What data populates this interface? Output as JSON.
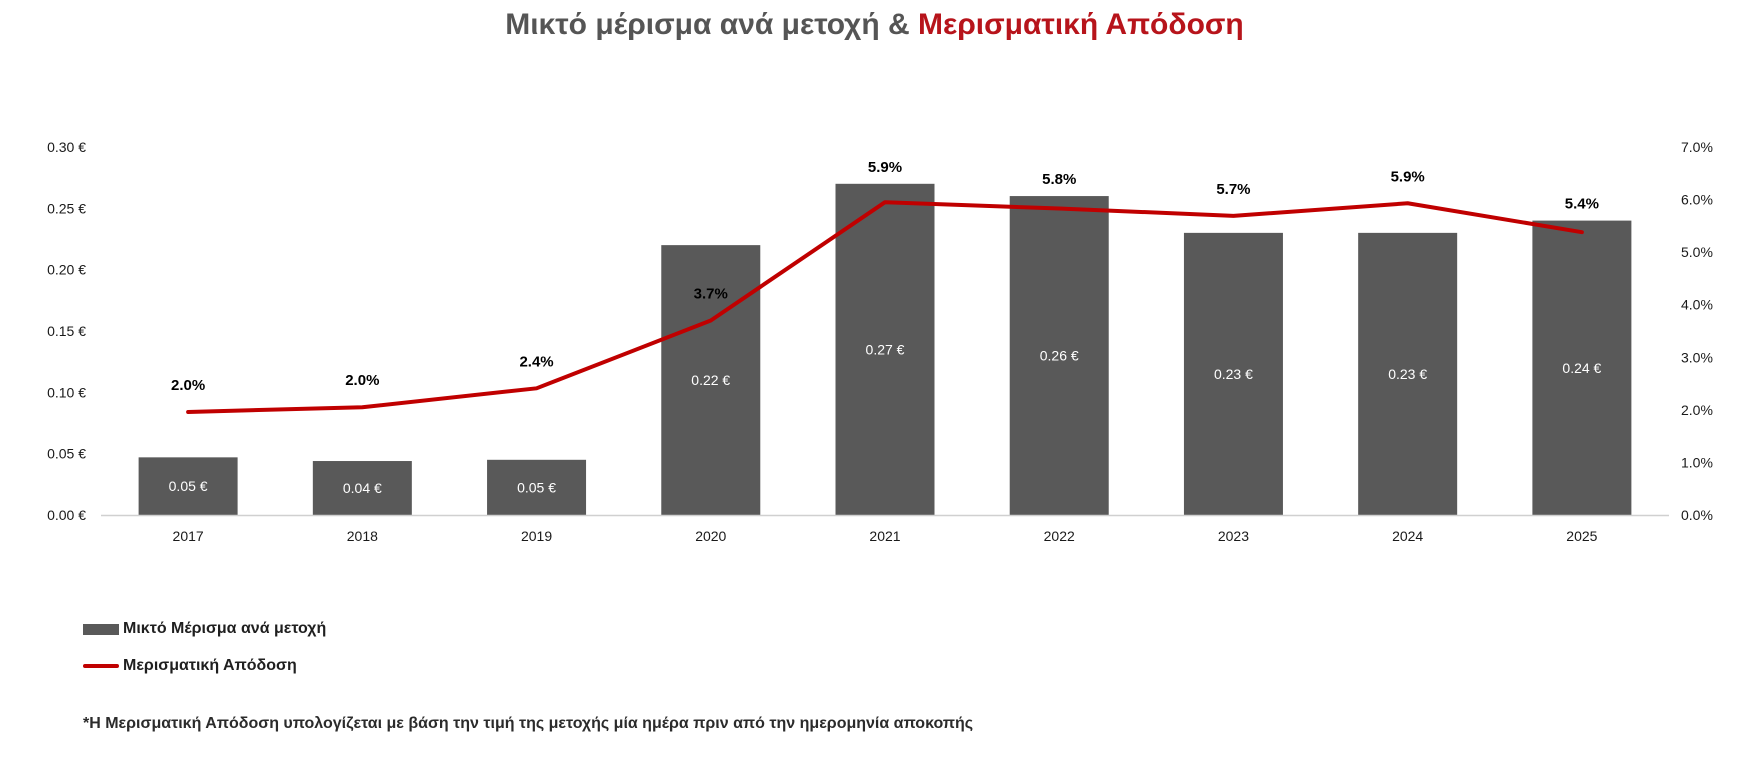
{
  "title": {
    "part1": "Μικτό μέρισμα ανά μετοχή & ",
    "part2": "Μερισματική Απόδοση"
  },
  "colors": {
    "bar": "#595959",
    "line": "#c00000",
    "title_accent": "#b7141b"
  },
  "chart_data": {
    "type": "bar",
    "categories": [
      "2017",
      "2018",
      "2019",
      "2020",
      "2021",
      "2022",
      "2023",
      "2024",
      "2025"
    ],
    "series": [
      {
        "name": "Μικτό Μέρισμα ανά μετοχή",
        "type": "bar",
        "axis": "left",
        "values": [
          0.047,
          0.044,
          0.045,
          0.22,
          0.27,
          0.26,
          0.23,
          0.23,
          0.24
        ],
        "labels": [
          "0.05 €",
          "0.04 €",
          "0.05 €",
          "0.22 €",
          "0.27 €",
          "0.26 €",
          "0.23 €",
          "0.23 €",
          "0.24 €"
        ]
      },
      {
        "name": "Μερισματική Απόδοση",
        "type": "line",
        "axis": "right",
        "values": [
          1.96,
          2.05,
          2.41,
          3.7,
          5.95,
          5.83,
          5.69,
          5.93,
          5.38
        ],
        "labels": [
          "2.0%",
          "2.0%",
          "2.4%",
          "3.7%",
          "5.9%",
          "5.8%",
          "5.7%",
          "5.9%",
          "5.4%"
        ]
      }
    ],
    "left_axis": {
      "ylim": [
        0,
        0.3
      ],
      "ticks": [
        "0.00 €",
        "0.05 €",
        "0.10 €",
        "0.15 €",
        "0.20 €",
        "0.25 €",
        "0.30 €"
      ]
    },
    "right_axis": {
      "ylim": [
        0,
        7
      ],
      "ticks": [
        "0.0%",
        "1.0%",
        "2.0%",
        "3.0%",
        "4.0%",
        "5.0%",
        "6.0%",
        "7.0%"
      ]
    },
    "grid": false,
    "legend_position": "bottom-left"
  },
  "legend": {
    "bar_label": "Μικτό Μέρισμα ανά μετοχή",
    "line_label": "Μερισματική Απόδοση"
  },
  "footnote": "*Η Μερισματική Απόδοση υπολογίζεται με βάση την τιμή της μετοχής μία ημέρα πριν από την ημερομηνία αποκοπής"
}
